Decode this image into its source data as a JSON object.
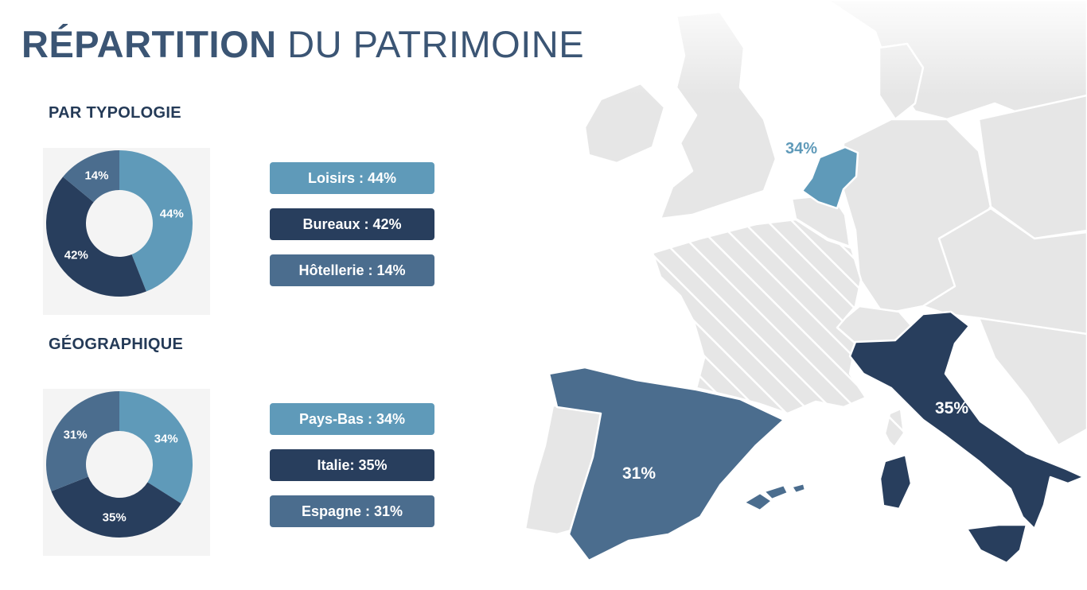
{
  "header": {
    "title_strong": "RÉPARTITION",
    "title_rest": " DU PATRIMOINE"
  },
  "colors": {
    "light_blue": "#5f9ab9",
    "dark_navy": "#283e5d",
    "steel_blue": "#4b6d8e",
    "map_country": "#e6e6e6",
    "title": "#3b5574"
  },
  "chart_data": [
    {
      "type": "pie",
      "title": "PAR TYPOLOGIE",
      "donut": true,
      "slices": [
        {
          "label": "Loisirs",
          "value": 44,
          "display": "44%",
          "legend": "Loisirs : 44%",
          "color": "#5f9ab9"
        },
        {
          "label": "Bureaux",
          "value": 42,
          "display": "42%",
          "legend": "Bureaux : 42%",
          "color": "#283e5d"
        },
        {
          "label": "Hôtellerie",
          "value": 14,
          "display": "14%",
          "legend": "Hôtellerie : 14%",
          "color": "#4b6d8e"
        }
      ]
    },
    {
      "type": "pie",
      "title": "GÉOGRAPHIQUE",
      "donut": true,
      "slices": [
        {
          "label": "Pays-Bas",
          "value": 34,
          "display": "34%",
          "legend": "Pays-Bas : 34%",
          "color": "#5f9ab9"
        },
        {
          "label": "Italie",
          "value": 35,
          "display": "35%",
          "legend": "Italie: 35%",
          "color": "#283e5d"
        },
        {
          "label": "Espagne",
          "value": 31,
          "display": "31%",
          "legend": "Espagne : 31%",
          "color": "#4b6d8e"
        }
      ]
    }
  ],
  "map": {
    "labels": {
      "netherlands": "34%",
      "italy": "35%",
      "spain": "31%"
    }
  }
}
